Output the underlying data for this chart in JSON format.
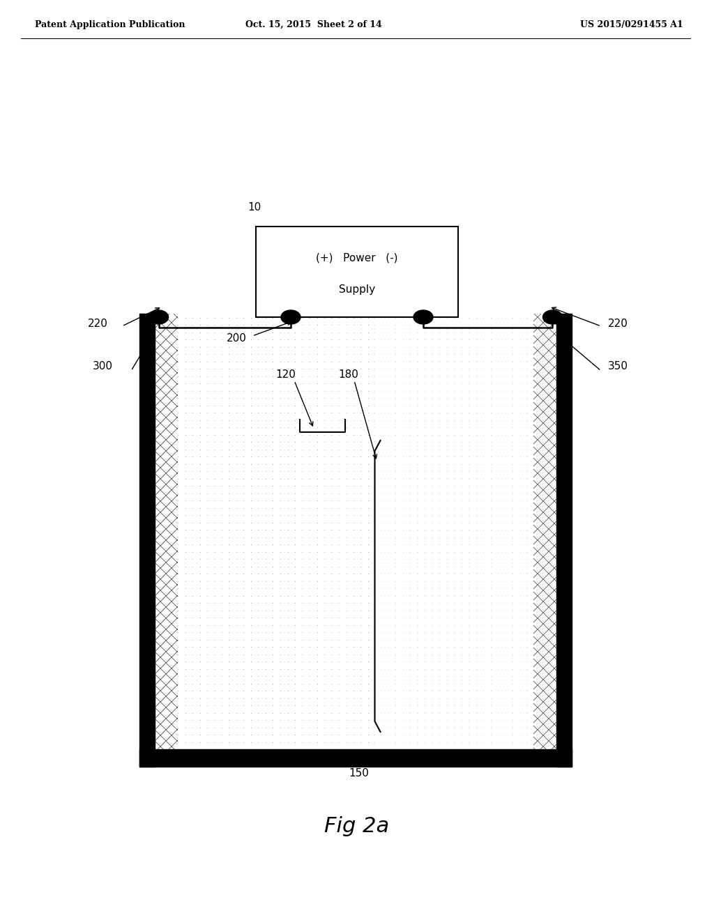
{
  "bg_color": "#ffffff",
  "header_left": "Patent Application Publication",
  "header_mid": "Oct. 15, 2015  Sheet 2 of 14",
  "header_right": "US 2015/0291455 A1",
  "fig_label": "Fig 2a",
  "label_10": "10",
  "label_200": "200",
  "label_220_left": "220",
  "label_220_right": "220",
  "label_300": "300",
  "label_350": "350",
  "label_120": "120",
  "label_180": "180",
  "label_150": "150"
}
